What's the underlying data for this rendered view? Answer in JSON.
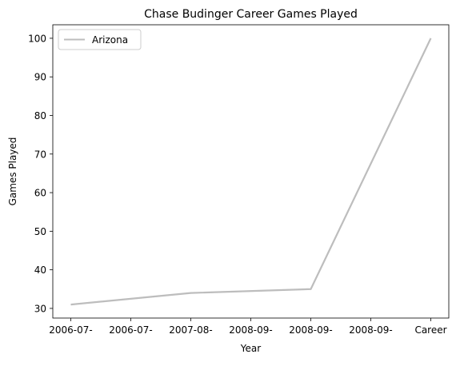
{
  "chart_data": {
    "type": "line",
    "title": "Chase Budinger Career Games Played",
    "xlabel": "Year",
    "ylabel": "Games Played",
    "categories": [
      "2006-07-",
      "2006-07-",
      "2007-08-",
      "2008-09-",
      "2008-09-",
      "2008-09-",
      "Career"
    ],
    "x_tick_labels": [
      "2006-07-",
      "2006-07-",
      "2007-08-",
      "2008-09-",
      "2008-09-",
      "2008-09-",
      "Career"
    ],
    "series": [
      {
        "name": "Arizona",
        "color": "#bdbdbd",
        "values": [
          31,
          null,
          34,
          null,
          35,
          null,
          100
        ]
      }
    ],
    "ylim": [
      27.5,
      103.5
    ],
    "yticks": [
      30,
      40,
      50,
      60,
      70,
      80,
      90,
      100
    ],
    "grid": false,
    "legend": "top-left"
  }
}
